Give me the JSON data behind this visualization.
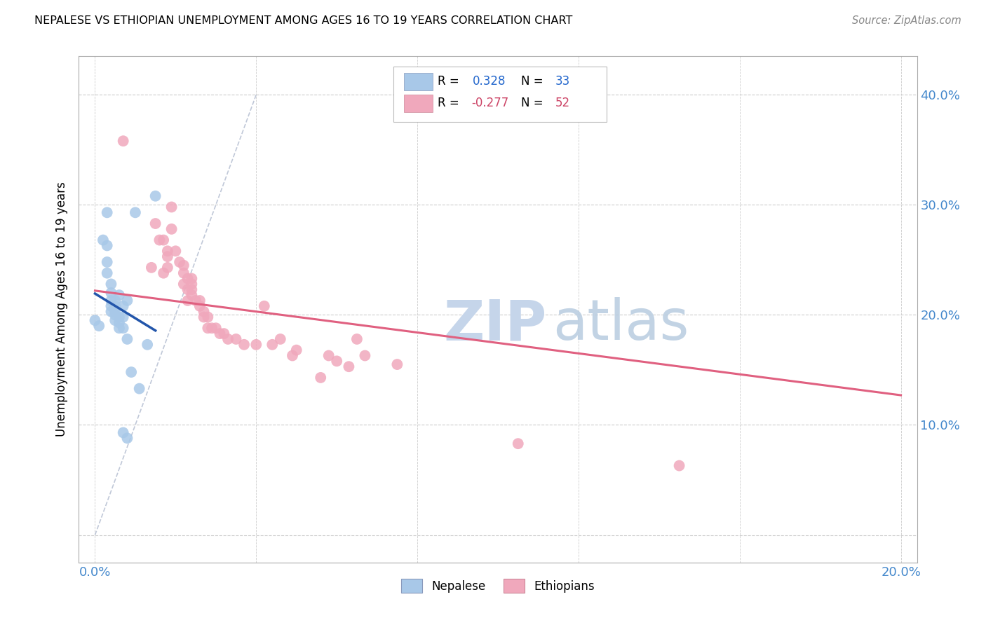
{
  "title": "NEPALESE VS ETHIOPIAN UNEMPLOYMENT AMONG AGES 16 TO 19 YEARS CORRELATION CHART",
  "source": "Source: ZipAtlas.com",
  "ylabel_label": "Unemployment Among Ages 16 to 19 years",
  "nepalese_R": 0.328,
  "nepalese_N": 33,
  "ethiopian_R": -0.277,
  "ethiopian_N": 52,
  "nepalese_color": "#a8c8e8",
  "ethiopian_color": "#f0a8bc",
  "nepalese_trend_color": "#2255aa",
  "ethiopian_trend_color": "#e06080",
  "diagonal_color": "#c0c8d8",
  "watermark_color": "#d0ddf0",
  "nepalese_points": [
    [
      0.0,
      0.195
    ],
    [
      0.001,
      0.19
    ],
    [
      0.002,
      0.268
    ],
    [
      0.003,
      0.293
    ],
    [
      0.003,
      0.263
    ],
    [
      0.003,
      0.248
    ],
    [
      0.003,
      0.238
    ],
    [
      0.004,
      0.228
    ],
    [
      0.004,
      0.22
    ],
    [
      0.004,
      0.213
    ],
    [
      0.004,
      0.208
    ],
    [
      0.004,
      0.203
    ],
    [
      0.005,
      0.2
    ],
    [
      0.005,
      0.195
    ],
    [
      0.005,
      0.213
    ],
    [
      0.005,
      0.208
    ],
    [
      0.005,
      0.203
    ],
    [
      0.006,
      0.198
    ],
    [
      0.006,
      0.193
    ],
    [
      0.006,
      0.188
    ],
    [
      0.006,
      0.218
    ],
    [
      0.007,
      0.208
    ],
    [
      0.007,
      0.198
    ],
    [
      0.007,
      0.188
    ],
    [
      0.007,
      0.093
    ],
    [
      0.008,
      0.088
    ],
    [
      0.008,
      0.213
    ],
    [
      0.008,
      0.178
    ],
    [
      0.009,
      0.148
    ],
    [
      0.01,
      0.293
    ],
    [
      0.011,
      0.133
    ],
    [
      0.013,
      0.173
    ],
    [
      0.015,
      0.308
    ]
  ],
  "ethiopian_points": [
    [
      0.007,
      0.358
    ],
    [
      0.014,
      0.243
    ],
    [
      0.015,
      0.283
    ],
    [
      0.016,
      0.268
    ],
    [
      0.017,
      0.268
    ],
    [
      0.017,
      0.238
    ],
    [
      0.018,
      0.258
    ],
    [
      0.018,
      0.253
    ],
    [
      0.018,
      0.243
    ],
    [
      0.019,
      0.298
    ],
    [
      0.019,
      0.278
    ],
    [
      0.02,
      0.258
    ],
    [
      0.021,
      0.248
    ],
    [
      0.022,
      0.245
    ],
    [
      0.022,
      0.238
    ],
    [
      0.022,
      0.228
    ],
    [
      0.023,
      0.233
    ],
    [
      0.023,
      0.223
    ],
    [
      0.023,
      0.213
    ],
    [
      0.024,
      0.233
    ],
    [
      0.024,
      0.228
    ],
    [
      0.024,
      0.223
    ],
    [
      0.024,
      0.218
    ],
    [
      0.025,
      0.213
    ],
    [
      0.026,
      0.213
    ],
    [
      0.026,
      0.208
    ],
    [
      0.027,
      0.203
    ],
    [
      0.027,
      0.198
    ],
    [
      0.028,
      0.198
    ],
    [
      0.028,
      0.188
    ],
    [
      0.029,
      0.188
    ],
    [
      0.03,
      0.188
    ],
    [
      0.031,
      0.183
    ],
    [
      0.032,
      0.183
    ],
    [
      0.033,
      0.178
    ],
    [
      0.035,
      0.178
    ],
    [
      0.037,
      0.173
    ],
    [
      0.04,
      0.173
    ],
    [
      0.042,
      0.208
    ],
    [
      0.044,
      0.173
    ],
    [
      0.046,
      0.178
    ],
    [
      0.049,
      0.163
    ],
    [
      0.05,
      0.168
    ],
    [
      0.056,
      0.143
    ],
    [
      0.058,
      0.163
    ],
    [
      0.06,
      0.158
    ],
    [
      0.063,
      0.153
    ],
    [
      0.065,
      0.178
    ],
    [
      0.067,
      0.163
    ],
    [
      0.075,
      0.155
    ],
    [
      0.105,
      0.083
    ],
    [
      0.145,
      0.063
    ]
  ],
  "xlim": [
    -0.004,
    0.204
  ],
  "ylim": [
    -0.025,
    0.435
  ],
  "xtick_positions": [
    0.0,
    0.04,
    0.08,
    0.12,
    0.16,
    0.2
  ],
  "ytick_positions": [
    0.0,
    0.1,
    0.2,
    0.3,
    0.4
  ]
}
